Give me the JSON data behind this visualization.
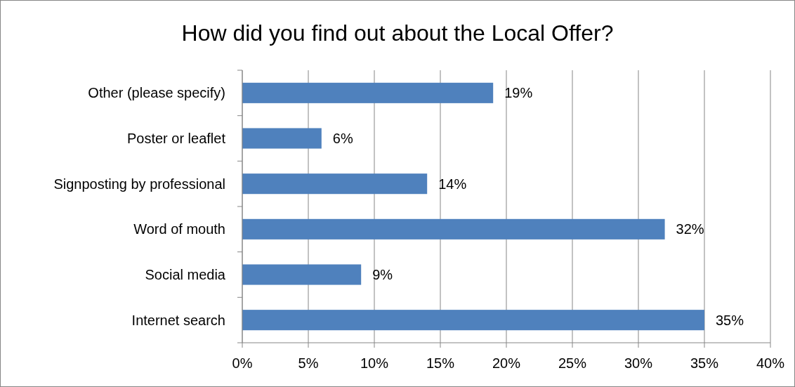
{
  "chart_data": {
    "type": "bar",
    "orientation": "horizontal",
    "title": "How did you find out about the Local Offer?",
    "categories": [
      "Other (please specify)",
      "Poster or leaflet",
      "Signposting by professional",
      "Word of mouth",
      "Social media",
      "Internet search"
    ],
    "values": [
      19,
      6,
      14,
      32,
      9,
      35
    ],
    "color": "#4f81bd",
    "value_labels": [
      "19%",
      "6%",
      "14%",
      "32%",
      "9%",
      "35%"
    ],
    "xlim": [
      0,
      40
    ],
    "xticks": [
      {
        "value": 0,
        "label": "0%"
      },
      {
        "value": 5,
        "label": "5%"
      },
      {
        "value": 10,
        "label": "10%"
      },
      {
        "value": 15,
        "label": "15%"
      },
      {
        "value": 20,
        "label": "20%"
      },
      {
        "value": 25,
        "label": "25%"
      },
      {
        "value": 30,
        "label": "30%"
      },
      {
        "value": 35,
        "label": "35%"
      },
      {
        "value": 40,
        "label": "40%"
      }
    ],
    "grid": "x"
  }
}
